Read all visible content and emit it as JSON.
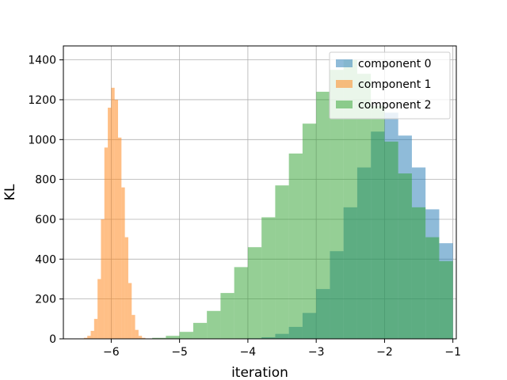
{
  "chart_data": {
    "type": "histogram",
    "title": "",
    "xlabel": "iteration",
    "ylabel": "KL",
    "xlim": [
      -6.7,
      -0.95
    ],
    "ylim": [
      0,
      1470
    ],
    "xticks": [
      -6,
      -5,
      -4,
      -3,
      -2,
      -1
    ],
    "yticks": [
      0,
      200,
      400,
      600,
      800,
      1000,
      1200,
      1400
    ],
    "grid": true,
    "legend_position": "top-right",
    "series": [
      {
        "name": "component 0",
        "color": "#1f77b4",
        "bins": [
          {
            "x0": -4.0,
            "x1": -3.8,
            "y": 3
          },
          {
            "x0": -3.8,
            "x1": -3.6,
            "y": 8
          },
          {
            "x0": -3.6,
            "x1": -3.4,
            "y": 25
          },
          {
            "x0": -3.4,
            "x1": -3.2,
            "y": 60
          },
          {
            "x0": -3.2,
            "x1": -3.0,
            "y": 130
          },
          {
            "x0": -3.0,
            "x1": -2.8,
            "y": 250
          },
          {
            "x0": -2.8,
            "x1": -2.6,
            "y": 440
          },
          {
            "x0": -2.6,
            "x1": -2.4,
            "y": 660
          },
          {
            "x0": -2.4,
            "x1": -2.2,
            "y": 860
          },
          {
            "x0": -2.2,
            "x1": -2.0,
            "y": 1040
          },
          {
            "x0": -2.0,
            "x1": -1.8,
            "y": 1135
          },
          {
            "x0": -1.8,
            "x1": -1.6,
            "y": 1020
          },
          {
            "x0": -1.6,
            "x1": -1.4,
            "y": 860
          },
          {
            "x0": -1.4,
            "x1": -1.2,
            "y": 650
          },
          {
            "x0": -1.2,
            "x1": -1.0,
            "y": 480
          }
        ]
      },
      {
        "name": "component 1",
        "color": "#ff7f0e",
        "bins": [
          {
            "x0": -6.4,
            "x1": -6.35,
            "y": 5
          },
          {
            "x0": -6.35,
            "x1": -6.3,
            "y": 15
          },
          {
            "x0": -6.3,
            "x1": -6.25,
            "y": 40
          },
          {
            "x0": -6.25,
            "x1": -6.2,
            "y": 100
          },
          {
            "x0": -6.2,
            "x1": -6.15,
            "y": 300
          },
          {
            "x0": -6.15,
            "x1": -6.1,
            "y": 600
          },
          {
            "x0": -6.1,
            "x1": -6.05,
            "y": 960
          },
          {
            "x0": -6.05,
            "x1": -6.0,
            "y": 1160
          },
          {
            "x0": -6.0,
            "x1": -5.95,
            "y": 1260
          },
          {
            "x0": -5.95,
            "x1": -5.9,
            "y": 1200
          },
          {
            "x0": -5.9,
            "x1": -5.85,
            "y": 1010
          },
          {
            "x0": -5.85,
            "x1": -5.8,
            "y": 760
          },
          {
            "x0": -5.8,
            "x1": -5.75,
            "y": 510
          },
          {
            "x0": -5.75,
            "x1": -5.7,
            "y": 280
          },
          {
            "x0": -5.7,
            "x1": -5.65,
            "y": 120
          },
          {
            "x0": -5.65,
            "x1": -5.6,
            "y": 45
          },
          {
            "x0": -5.6,
            "x1": -5.55,
            "y": 15
          },
          {
            "x0": -5.55,
            "x1": -5.5,
            "y": 5
          }
        ]
      },
      {
        "name": "component 2",
        "color": "#2ca02c",
        "bins": [
          {
            "x0": -5.4,
            "x1": -5.2,
            "y": 5
          },
          {
            "x0": -5.2,
            "x1": -5.0,
            "y": 15
          },
          {
            "x0": -5.0,
            "x1": -4.8,
            "y": 35
          },
          {
            "x0": -4.8,
            "x1": -4.6,
            "y": 80
          },
          {
            "x0": -4.6,
            "x1": -4.4,
            "y": 140
          },
          {
            "x0": -4.4,
            "x1": -4.2,
            "y": 230
          },
          {
            "x0": -4.2,
            "x1": -4.0,
            "y": 360
          },
          {
            "x0": -4.0,
            "x1": -3.8,
            "y": 460
          },
          {
            "x0": -3.8,
            "x1": -3.6,
            "y": 610
          },
          {
            "x0": -3.6,
            "x1": -3.4,
            "y": 770
          },
          {
            "x0": -3.4,
            "x1": -3.2,
            "y": 930
          },
          {
            "x0": -3.2,
            "x1": -3.0,
            "y": 1080
          },
          {
            "x0": -3.0,
            "x1": -2.8,
            "y": 1240
          },
          {
            "x0": -2.8,
            "x1": -2.6,
            "y": 1350
          },
          {
            "x0": -2.6,
            "x1": -2.4,
            "y": 1400
          },
          {
            "x0": -2.4,
            "x1": -2.2,
            "y": 1330
          },
          {
            "x0": -2.2,
            "x1": -2.0,
            "y": 1170
          },
          {
            "x0": -2.0,
            "x1": -1.8,
            "y": 990
          },
          {
            "x0": -1.8,
            "x1": -1.6,
            "y": 830
          },
          {
            "x0": -1.6,
            "x1": -1.4,
            "y": 660
          },
          {
            "x0": -1.4,
            "x1": -1.2,
            "y": 510
          },
          {
            "x0": -1.2,
            "x1": -1.0,
            "y": 390
          }
        ]
      }
    ]
  }
}
